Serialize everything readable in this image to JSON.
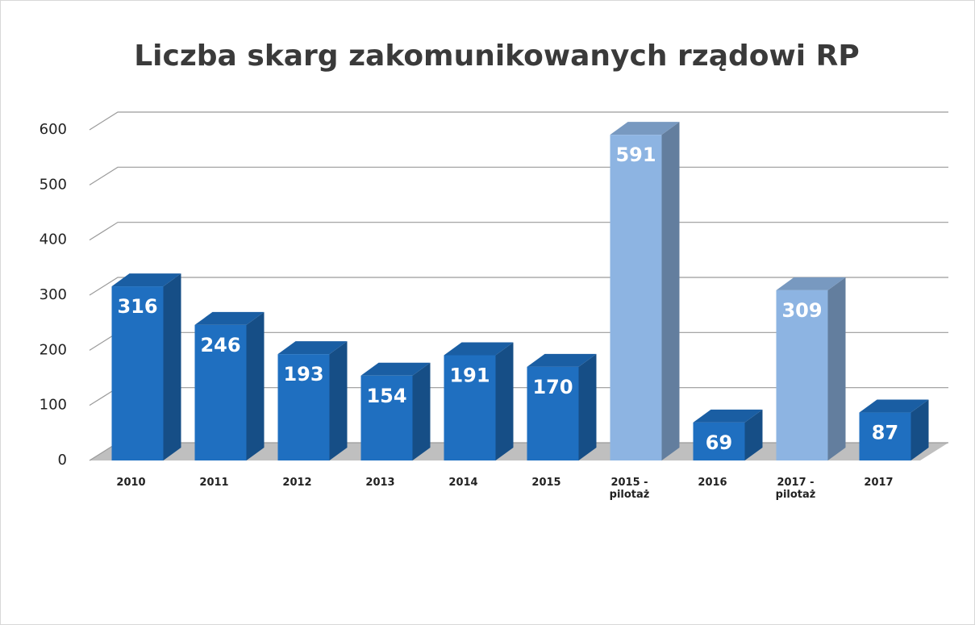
{
  "chart_data": {
    "type": "bar3d",
    "title": "Liczba skarg zakomunikowanych rządowi RP",
    "categories": [
      "2010",
      "2011",
      "2012",
      "2013",
      "2014",
      "2015",
      "2015 - pilotaż",
      "2016",
      "2017 - pilotaż",
      "2017"
    ],
    "values": [
      316,
      246,
      193,
      154,
      191,
      170,
      591,
      69,
      309,
      87
    ],
    "colors": [
      "#1f6fc0",
      "#1f6fc0",
      "#1f6fc0",
      "#1f6fc0",
      "#1f6fc0",
      "#1f6fc0",
      "#8db4e2",
      "#1f6fc0",
      "#8db4e2",
      "#1f6fc0"
    ],
    "ylim": [
      0,
      600
    ],
    "yticks": [
      0,
      100,
      200,
      300,
      400,
      500,
      600
    ],
    "grid": true
  }
}
